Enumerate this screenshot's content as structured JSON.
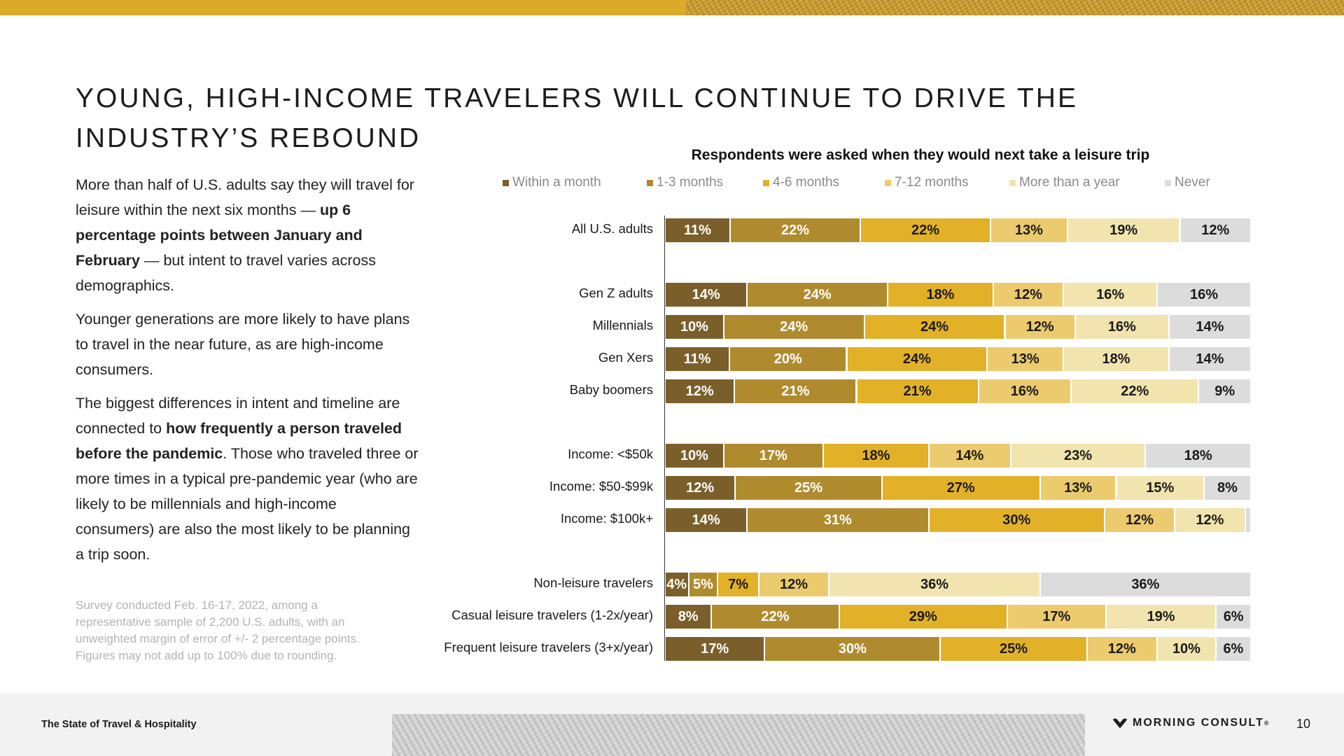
{
  "page": {
    "title": "YOUNG, HIGH-INCOME TRAVELERS WILL CONTINUE TO DRIVE THE INDUSTRY’S REBOUND",
    "paragraphs": [
      [
        {
          "t": "More than half of U.S. adults say they will travel for leisure within the next six months — ",
          "b": false
        },
        {
          "t": "up 6 percentage points between January and February",
          "b": true
        },
        {
          "t": " — but intent to travel varies across demographics.",
          "b": false
        }
      ],
      [
        {
          "t": "Younger generations are more likely to have plans to travel in the near future, as are high-income consumers.",
          "b": false
        }
      ],
      [
        {
          "t": "The biggest differences in intent and timeline are connected to ",
          "b": false
        },
        {
          "t": "how frequently a person traveled before the pandemic",
          "b": true
        },
        {
          "t": ". Those who traveled three or more times in a typical pre-pandemic year (who are likely to be millennials and high-income consumers) are also the most likely to be planning a trip soon.",
          "b": false
        }
      ]
    ],
    "footnote": "Survey conducted Feb. 16-17, 2022, among a representative sample of 2,200 U.S. adults, with an unweighted margin of error of +/- 2 percentage points. Figures may not add up to 100% due to rounding.",
    "footer_left": "The State of Travel & Hospitality",
    "brand": "MORNING CONSULT",
    "brand_mark": "®",
    "page_number": "10",
    "accent_color": "#dcaa2a"
  },
  "chart_data": {
    "type": "bar",
    "orientation": "horizontal-stacked-100",
    "title": "Respondents were asked when they would next take a leisure trip",
    "xlim": [
      0,
      100
    ],
    "series": [
      {
        "name": "Within a month",
        "color": "#7a5f2a",
        "text_color": "#ffffff"
      },
      {
        "name": "1-3 months",
        "color": "#b08b2e",
        "text_color": "#ffffff"
      },
      {
        "name": "4-6 months",
        "color": "#e2b128",
        "text_color": "#1a1a1a"
      },
      {
        "name": "7-12 months",
        "color": "#eccb6e",
        "text_color": "#1a1a1a"
      },
      {
        "name": "More than a year",
        "color": "#f2e4ae",
        "text_color": "#1a1a1a"
      },
      {
        "name": "Never",
        "color": "#dcdcdc",
        "text_color": "#1a1a1a"
      }
    ],
    "rows": [
      {
        "label": "All U.S. adults",
        "values": [
          11,
          22,
          22,
          13,
          19,
          12
        ],
        "labels": [
          "11%",
          "22%",
          "22%",
          "13%",
          "19%",
          "12%"
        ]
      },
      {
        "label": "Gen Z adults",
        "values": [
          14,
          24,
          18,
          12,
          16,
          16
        ],
        "labels": [
          "14%",
          "24%",
          "18%",
          "12%",
          "16%",
          "16%"
        ]
      },
      {
        "label": "Millennials",
        "values": [
          10,
          24,
          24,
          12,
          16,
          14
        ],
        "labels": [
          "10%",
          "24%",
          "24%",
          "12%",
          "16%",
          "14%"
        ]
      },
      {
        "label": "Gen Xers",
        "values": [
          11,
          20,
          24,
          13,
          18,
          14
        ],
        "labels": [
          "11%",
          "20%",
          "24%",
          "13%",
          "18%",
          "14%"
        ]
      },
      {
        "label": "Baby boomers",
        "values": [
          12,
          21,
          21,
          16,
          22,
          9
        ],
        "labels": [
          "12%",
          "21%",
          "21%",
          "16%",
          "22%",
          "9%"
        ]
      },
      {
        "label": "Income: <$50k",
        "values": [
          10,
          17,
          18,
          14,
          23,
          18
        ],
        "labels": [
          "10%",
          "17%",
          "18%",
          "14%",
          "23%",
          "18%"
        ]
      },
      {
        "label": "Income: $50-$99k",
        "values": [
          12,
          25,
          27,
          13,
          15,
          8
        ],
        "labels": [
          "12%",
          "25%",
          "27%",
          "13%",
          "15%",
          "8%"
        ]
      },
      {
        "label": "Income: $100k+",
        "values": [
          14,
          31,
          30,
          12,
          12,
          1
        ],
        "labels": [
          "14%",
          "31%",
          "30%",
          "12%",
          "12%",
          ""
        ]
      },
      {
        "label": "Non-leisure travelers",
        "values": [
          4,
          5,
          7,
          12,
          36,
          36
        ],
        "labels": [
          "4%",
          "5%",
          "7%",
          "12%",
          "36%",
          "36%"
        ]
      },
      {
        "label": "Casual leisure travelers (1-2x/year)",
        "values": [
          8,
          22,
          29,
          17,
          19,
          6
        ],
        "labels": [
          "8%",
          "22%",
          "29%",
          "17%",
          "19%",
          "6%"
        ]
      },
      {
        "label": "Frequent leisure travelers (3+x/year)",
        "values": [
          17,
          30,
          25,
          12,
          10,
          6
        ],
        "labels": [
          "17%",
          "30%",
          "25%",
          "12%",
          "10%",
          "6%"
        ]
      }
    ]
  }
}
